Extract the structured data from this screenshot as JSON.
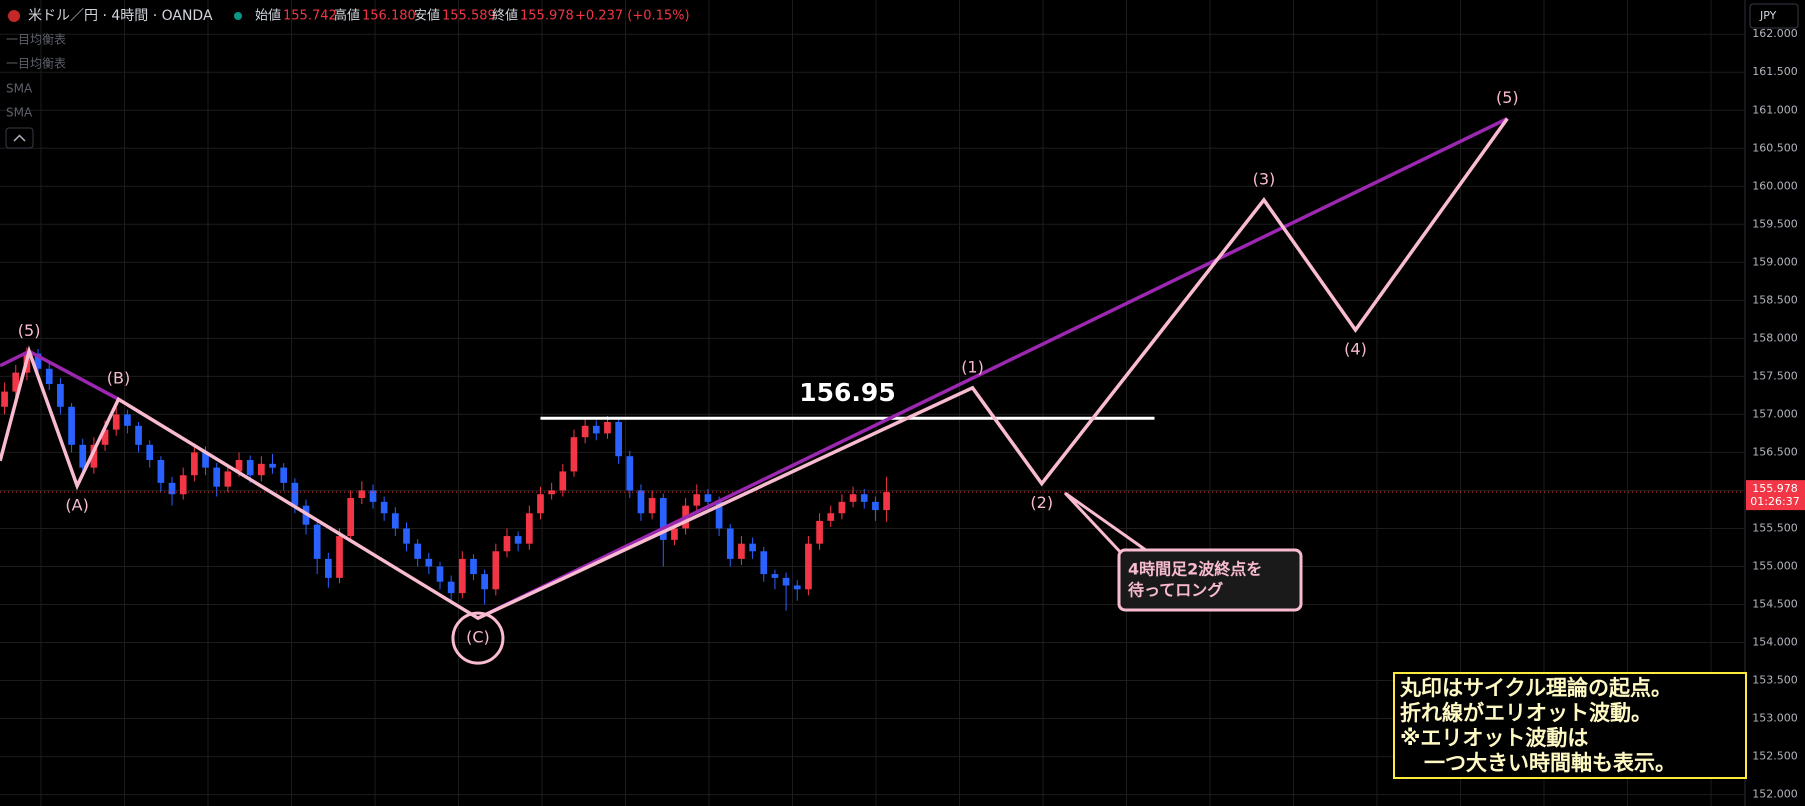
{
  "chart_data": {
    "type": "candlestick",
    "header": {
      "symbol": "米ドル／円 · 4時間 · OANDA",
      "open_label": "始値",
      "open": "155.742",
      "high_label": "高値",
      "high": "156.180",
      "low_label": "安値",
      "low": "155.589",
      "close_label": "終値",
      "close": "155.978",
      "change": "+0.237 (+0.15%)"
    },
    "indicators": [
      "一目均衡表",
      "一目均衡表",
      "SMA",
      "SMA"
    ],
    "currency": "JPY",
    "up_color": "#f23645",
    "down_color": "#2962ff",
    "ohlc": [
      [
        157.1,
        157.42,
        157.0,
        157.3
      ],
      [
        157.3,
        157.65,
        157.22,
        157.55
      ],
      [
        157.55,
        157.88,
        157.45,
        157.8
      ],
      [
        157.8,
        157.86,
        157.5,
        157.6
      ],
      [
        157.6,
        157.7,
        157.32,
        157.4
      ],
      [
        157.4,
        157.48,
        157.0,
        157.1
      ],
      [
        157.1,
        157.15,
        156.5,
        156.6
      ],
      [
        156.6,
        156.68,
        156.18,
        156.3
      ],
      [
        156.3,
        156.7,
        156.22,
        156.6
      ],
      [
        156.6,
        156.92,
        156.52,
        156.8
      ],
      [
        156.8,
        157.1,
        156.72,
        157.0
      ],
      [
        157.0,
        157.06,
        156.75,
        156.85
      ],
      [
        156.85,
        156.9,
        156.5,
        156.6
      ],
      [
        156.6,
        156.66,
        156.3,
        156.4
      ],
      [
        156.4,
        156.45,
        155.98,
        156.1
      ],
      [
        156.1,
        156.18,
        155.8,
        155.95
      ],
      [
        155.95,
        156.3,
        155.88,
        156.2
      ],
      [
        156.2,
        156.62,
        156.12,
        156.5
      ],
      [
        156.5,
        156.58,
        156.2,
        156.3
      ],
      [
        156.3,
        156.36,
        155.92,
        156.05
      ],
      [
        156.05,
        156.35,
        155.98,
        156.25
      ],
      [
        156.25,
        156.5,
        156.18,
        156.4
      ],
      [
        156.4,
        156.46,
        156.1,
        156.2
      ],
      [
        156.2,
        156.45,
        156.12,
        156.35
      ],
      [
        156.35,
        156.48,
        156.22,
        156.3
      ],
      [
        156.3,
        156.36,
        156.0,
        156.1
      ],
      [
        156.1,
        156.16,
        155.7,
        155.8
      ],
      [
        155.8,
        155.88,
        155.42,
        155.55
      ],
      [
        155.55,
        155.62,
        154.9,
        155.1
      ],
      [
        155.1,
        155.18,
        154.72,
        154.85
      ],
      [
        154.85,
        155.5,
        154.78,
        155.4
      ],
      [
        155.4,
        156.0,
        155.32,
        155.9
      ],
      [
        155.9,
        156.12,
        155.82,
        156.0
      ],
      [
        156.0,
        156.08,
        155.76,
        155.85
      ],
      [
        155.85,
        155.92,
        155.6,
        155.7
      ],
      [
        155.7,
        155.78,
        155.4,
        155.5
      ],
      [
        155.5,
        155.58,
        155.2,
        155.3
      ],
      [
        155.3,
        155.36,
        155.0,
        155.1
      ],
      [
        155.1,
        155.18,
        154.9,
        155.0
      ],
      [
        155.0,
        155.06,
        154.7,
        154.8
      ],
      [
        154.8,
        154.88,
        154.55,
        154.65
      ],
      [
        154.65,
        155.2,
        154.58,
        155.1
      ],
      [
        155.1,
        155.16,
        154.82,
        154.9
      ],
      [
        154.9,
        154.96,
        154.5,
        154.7
      ],
      [
        154.7,
        155.3,
        154.62,
        155.2
      ],
      [
        155.2,
        155.5,
        155.12,
        155.4
      ],
      [
        155.4,
        155.46,
        155.2,
        155.3
      ],
      [
        155.3,
        155.8,
        155.22,
        155.7
      ],
      [
        155.7,
        156.05,
        155.62,
        155.95
      ],
      [
        155.95,
        156.1,
        155.88,
        156.0
      ],
      [
        156.0,
        156.35,
        155.92,
        156.25
      ],
      [
        156.25,
        156.8,
        156.18,
        156.7
      ],
      [
        156.7,
        156.95,
        156.62,
        156.85
      ],
      [
        156.85,
        156.92,
        156.66,
        156.75
      ],
      [
        156.75,
        156.98,
        156.68,
        156.9
      ],
      [
        156.9,
        156.96,
        156.35,
        156.45
      ],
      [
        156.45,
        156.52,
        155.9,
        156.0
      ],
      [
        156.0,
        156.08,
        155.6,
        155.7
      ],
      [
        155.7,
        156.0,
        155.62,
        155.9
      ],
      [
        155.9,
        155.96,
        155.0,
        155.35
      ],
      [
        155.35,
        155.6,
        155.28,
        155.5
      ],
      [
        155.5,
        155.9,
        155.42,
        155.8
      ],
      [
        155.8,
        156.08,
        155.72,
        155.95
      ],
      [
        155.95,
        156.02,
        155.76,
        155.85
      ],
      [
        155.85,
        155.92,
        155.4,
        155.5
      ],
      [
        155.5,
        155.56,
        155.0,
        155.1
      ],
      [
        155.1,
        155.4,
        155.02,
        155.3
      ],
      [
        155.3,
        155.38,
        155.1,
        155.2
      ],
      [
        155.2,
        155.26,
        154.8,
        154.9
      ],
      [
        154.9,
        154.96,
        154.7,
        154.85
      ],
      [
        154.85,
        154.92,
        154.42,
        154.75
      ],
      [
        154.75,
        154.82,
        154.55,
        154.7
      ],
      [
        154.7,
        155.4,
        154.62,
        155.3
      ],
      [
        155.3,
        155.7,
        155.22,
        155.6
      ],
      [
        155.6,
        155.8,
        155.52,
        155.7
      ],
      [
        155.7,
        155.95,
        155.62,
        155.85
      ],
      [
        155.85,
        156.05,
        155.78,
        155.95
      ],
      [
        155.95,
        156.02,
        155.76,
        155.85
      ],
      [
        155.85,
        155.92,
        155.6,
        155.742
      ],
      [
        155.742,
        156.18,
        155.589,
        155.978
      ]
    ],
    "xlim": [
      -0.41,
      155.8
    ],
    "ylim": [
      151.85,
      162.45
    ],
    "yticks": [
      {
        "value": 152,
        "label": "152.000"
      },
      {
        "value": 152.5,
        "label": "152.500"
      },
      {
        "value": 153,
        "label": "153.000"
      },
      {
        "value": 153.5,
        "label": "153.500"
      },
      {
        "value": 154,
        "label": "154.000"
      },
      {
        "value": 154.5,
        "label": "154.500"
      },
      {
        "value": 155,
        "label": "155.000"
      },
      {
        "value": 155.5,
        "label": "155.500"
      },
      {
        "value": 156,
        "label": "156.000"
      },
      {
        "value": 156.5,
        "label": "156.500"
      },
      {
        "value": 157,
        "label": "157.000"
      },
      {
        "value": 157.5,
        "label": "157.500"
      },
      {
        "value": 158,
        "label": "158.000"
      },
      {
        "value": 158.5,
        "label": "158.500"
      },
      {
        "value": 159,
        "label": "159.000"
      },
      {
        "value": 159.5,
        "label": "159.500"
      },
      {
        "value": 160,
        "label": "160.000"
      },
      {
        "value": 160.5,
        "label": "160.500"
      },
      {
        "value": 161,
        "label": "161.000"
      },
      {
        "value": 161.5,
        "label": "161.500"
      },
      {
        "value": 162,
        "label": "162.000"
      }
    ],
    "grid": true,
    "last_price": 155.978,
    "countdown": "01:26:37",
    "waves": [
      {
        "color": "#f8bbd0",
        "x": [
          -0.4,
          2.2,
          6.5,
          10.2,
          42.4,
          86.7,
          92.9,
          112.8,
          121.0,
          134.6
        ],
        "values": [
          156.39,
          157.83,
          156.06,
          157.2,
          154.32,
          157.35,
          156.09,
          159.82,
          158.11,
          160.89
        ],
        "labels": [
          null,
          "(5)",
          "(A)",
          "(B)",
          "(C)",
          "(1)",
          "(2)",
          "(3)",
          "(4)",
          "(5)"
        ]
      },
      {
        "color": "#9c27b0",
        "x": [
          -0.4,
          2.2,
          10.2,
          null,
          42.4,
          134.6
        ],
        "values": [
          157.64,
          157.83,
          157.2,
          null,
          154.32,
          160.89
        ]
      }
    ],
    "level": {
      "value": 156.95,
      "x": [
        48,
        103
      ],
      "color": "#ffffff"
    },
    "annotations": [
      "4時間足2波終点を",
      "待ってロング"
    ],
    "note": [
      "丸印はサイクル理論の起点。",
      "折れ線がエリオット波動。",
      "※エリオット波動は",
      "一つ大きい時間軸も表示。"
    ]
  }
}
